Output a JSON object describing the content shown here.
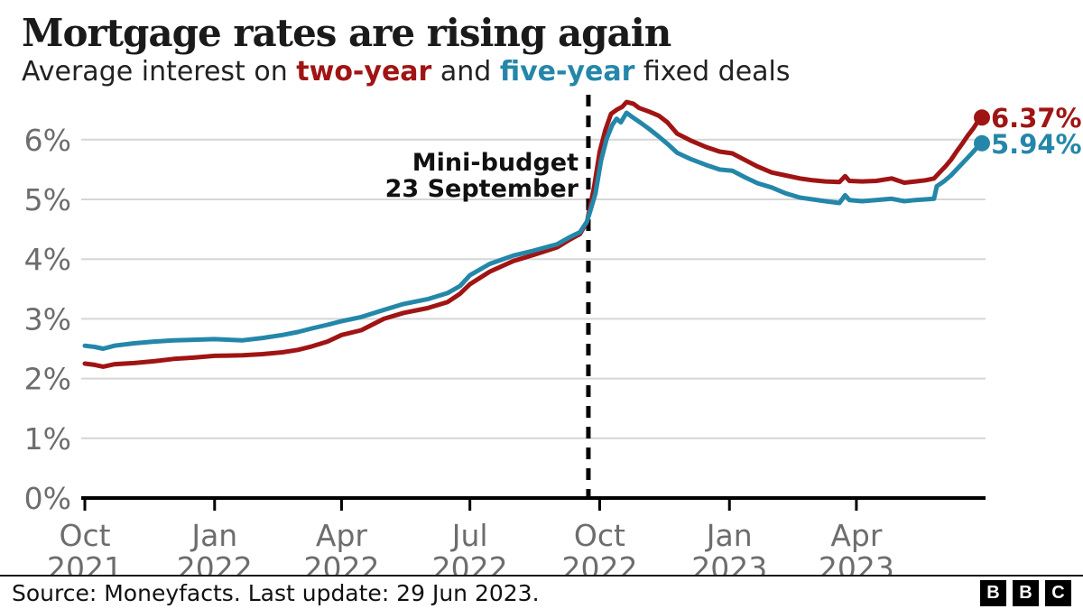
{
  "header": {
    "title": "Mortgage rates are rising again",
    "subtitle_parts": {
      "prefix": "Average interest on ",
      "series1": "two-year",
      "middle": " and ",
      "series2": "five-year",
      "suffix": " fixed deals"
    }
  },
  "colors": {
    "two_year": "#a01414",
    "five_year": "#2487a9",
    "grid": "#d6d6d6",
    "axis": "#000000",
    "tick_label": "#6d6d6d",
    "annotation": "#111111",
    "title": "#1a1a1a"
  },
  "annotation": {
    "line1": "Mini-budget",
    "line2": "23 September",
    "date": "2022-09-23"
  },
  "footer": {
    "source": "Source: Moneyfacts. Last update: 29 Jun 2023.",
    "logo_letters": [
      "B",
      "B",
      "C"
    ]
  },
  "chart_data": {
    "type": "line",
    "title": "Mortgage rates are rising again",
    "subtitle": "Average interest on two-year and five-year fixed deals",
    "x_start": "2021-10-01",
    "x_end": "2023-06-29",
    "ylim": [
      0,
      6.8
    ],
    "grid": true,
    "legend_position": "inline-subtitle",
    "y_ticks": [
      "0%",
      "1%",
      "2%",
      "3%",
      "4%",
      "5%",
      "6%"
    ],
    "x_ticks": [
      {
        "month": "Oct",
        "year": "2021",
        "date": "2021-10-01"
      },
      {
        "month": "Jan",
        "year": "2022",
        "date": "2022-01-01"
      },
      {
        "month": "Apr",
        "year": "2022",
        "date": "2022-04-01"
      },
      {
        "month": "Jul",
        "year": "2022",
        "date": "2022-07-01"
      },
      {
        "month": "Oct",
        "year": "2022",
        "date": "2022-10-01"
      },
      {
        "month": "Jan",
        "year": "2023",
        "date": "2023-01-01"
      },
      {
        "month": "Apr",
        "year": "2023",
        "date": "2023-04-01"
      }
    ],
    "event_line": {
      "date": "2022-09-23",
      "label": "Mini-budget 23 September"
    },
    "series": [
      {
        "name": "two-year",
        "color": "#a01414",
        "end_label": "6.37%",
        "end_value": 6.37,
        "points": [
          [
            "2021-10-01",
            2.25
          ],
          [
            "2021-10-08",
            2.23
          ],
          [
            "2021-10-14",
            2.2
          ],
          [
            "2021-10-22",
            2.24
          ],
          [
            "2021-11-05",
            2.26
          ],
          [
            "2021-11-19",
            2.29
          ],
          [
            "2021-12-03",
            2.33
          ],
          [
            "2021-12-17",
            2.35
          ],
          [
            "2022-01-01",
            2.38
          ],
          [
            "2022-01-21",
            2.39
          ],
          [
            "2022-02-04",
            2.41
          ],
          [
            "2022-02-18",
            2.44
          ],
          [
            "2022-03-01",
            2.48
          ],
          [
            "2022-03-11",
            2.54
          ],
          [
            "2022-03-22",
            2.62
          ],
          [
            "2022-04-01",
            2.73
          ],
          [
            "2022-04-15",
            2.81
          ],
          [
            "2022-05-01",
            3.0
          ],
          [
            "2022-05-15",
            3.1
          ],
          [
            "2022-06-01",
            3.18
          ],
          [
            "2022-06-15",
            3.28
          ],
          [
            "2022-06-24",
            3.42
          ],
          [
            "2022-07-01",
            3.58
          ],
          [
            "2022-07-15",
            3.79
          ],
          [
            "2022-08-01",
            3.97
          ],
          [
            "2022-08-15",
            4.07
          ],
          [
            "2022-09-01",
            4.2
          ],
          [
            "2022-09-10",
            4.33
          ],
          [
            "2022-09-17",
            4.42
          ],
          [
            "2022-09-22",
            4.62
          ],
          [
            "2022-09-23",
            4.74
          ],
          [
            "2022-09-27",
            5.2
          ],
          [
            "2022-10-01",
            5.8
          ],
          [
            "2022-10-05",
            6.16
          ],
          [
            "2022-10-09",
            6.43
          ],
          [
            "2022-10-13",
            6.5
          ],
          [
            "2022-10-17",
            6.55
          ],
          [
            "2022-10-20",
            6.63
          ],
          [
            "2022-10-25",
            6.6
          ],
          [
            "2022-10-29",
            6.53
          ],
          [
            "2022-11-05",
            6.47
          ],
          [
            "2022-11-12",
            6.4
          ],
          [
            "2022-11-18",
            6.29
          ],
          [
            "2022-11-25",
            6.1
          ],
          [
            "2022-12-05",
            5.98
          ],
          [
            "2022-12-15",
            5.88
          ],
          [
            "2022-12-25",
            5.8
          ],
          [
            "2023-01-03",
            5.77
          ],
          [
            "2023-01-12",
            5.66
          ],
          [
            "2023-01-21",
            5.55
          ],
          [
            "2023-01-31",
            5.45
          ],
          [
            "2023-02-10",
            5.4
          ],
          [
            "2023-02-20",
            5.35
          ],
          [
            "2023-03-01",
            5.32
          ],
          [
            "2023-03-10",
            5.3
          ],
          [
            "2023-03-20",
            5.29
          ],
          [
            "2023-03-24",
            5.39
          ],
          [
            "2023-03-27",
            5.31
          ],
          [
            "2023-04-05",
            5.3
          ],
          [
            "2023-04-15",
            5.31
          ],
          [
            "2023-04-26",
            5.35
          ],
          [
            "2023-05-05",
            5.28
          ],
          [
            "2023-05-13",
            5.3
          ],
          [
            "2023-05-20",
            5.32
          ],
          [
            "2023-05-26",
            5.35
          ],
          [
            "2023-05-30",
            5.45
          ],
          [
            "2023-06-03",
            5.55
          ],
          [
            "2023-06-07",
            5.66
          ],
          [
            "2023-06-11",
            5.8
          ],
          [
            "2023-06-15",
            5.93
          ],
          [
            "2023-06-19",
            6.07
          ],
          [
            "2023-06-23",
            6.19
          ],
          [
            "2023-06-26",
            6.3
          ],
          [
            "2023-06-29",
            6.37
          ]
        ]
      },
      {
        "name": "five-year",
        "color": "#2487a9",
        "end_label": "5.94%",
        "end_value": 5.94,
        "points": [
          [
            "2021-10-01",
            2.55
          ],
          [
            "2021-10-08",
            2.53
          ],
          [
            "2021-10-14",
            2.5
          ],
          [
            "2021-10-22",
            2.55
          ],
          [
            "2021-11-05",
            2.59
          ],
          [
            "2021-11-19",
            2.62
          ],
          [
            "2021-12-03",
            2.64
          ],
          [
            "2021-12-17",
            2.65
          ],
          [
            "2022-01-01",
            2.66
          ],
          [
            "2022-01-21",
            2.64
          ],
          [
            "2022-02-04",
            2.68
          ],
          [
            "2022-02-18",
            2.73
          ],
          [
            "2022-03-01",
            2.78
          ],
          [
            "2022-03-11",
            2.84
          ],
          [
            "2022-03-22",
            2.9
          ],
          [
            "2022-04-01",
            2.96
          ],
          [
            "2022-04-15",
            3.03
          ],
          [
            "2022-05-01",
            3.15
          ],
          [
            "2022-05-15",
            3.25
          ],
          [
            "2022-06-01",
            3.33
          ],
          [
            "2022-06-15",
            3.43
          ],
          [
            "2022-06-24",
            3.55
          ],
          [
            "2022-07-01",
            3.73
          ],
          [
            "2022-07-15",
            3.92
          ],
          [
            "2022-08-01",
            4.06
          ],
          [
            "2022-08-15",
            4.14
          ],
          [
            "2022-09-01",
            4.25
          ],
          [
            "2022-09-10",
            4.37
          ],
          [
            "2022-09-17",
            4.45
          ],
          [
            "2022-09-22",
            4.63
          ],
          [
            "2022-09-24",
            4.78
          ],
          [
            "2022-09-28",
            5.1
          ],
          [
            "2022-10-02",
            5.65
          ],
          [
            "2022-10-06",
            6.02
          ],
          [
            "2022-10-10",
            6.25
          ],
          [
            "2022-10-13",
            6.35
          ],
          [
            "2022-10-16",
            6.29
          ],
          [
            "2022-10-20",
            6.45
          ],
          [
            "2022-10-24",
            6.38
          ],
          [
            "2022-10-29",
            6.3
          ],
          [
            "2022-11-05",
            6.18
          ],
          [
            "2022-11-12",
            6.05
          ],
          [
            "2022-11-18",
            5.93
          ],
          [
            "2022-11-25",
            5.78
          ],
          [
            "2022-12-05",
            5.67
          ],
          [
            "2022-12-15",
            5.58
          ],
          [
            "2022-12-25",
            5.5
          ],
          [
            "2023-01-03",
            5.48
          ],
          [
            "2023-01-12",
            5.37
          ],
          [
            "2023-01-21",
            5.27
          ],
          [
            "2023-01-31",
            5.2
          ],
          [
            "2023-02-10",
            5.1
          ],
          [
            "2023-02-20",
            5.03
          ],
          [
            "2023-03-01",
            5.0
          ],
          [
            "2023-03-10",
            4.97
          ],
          [
            "2023-03-20",
            4.94
          ],
          [
            "2023-03-24",
            5.07
          ],
          [
            "2023-03-27",
            4.99
          ],
          [
            "2023-04-05",
            4.97
          ],
          [
            "2023-04-15",
            4.99
          ],
          [
            "2023-04-26",
            5.01
          ],
          [
            "2023-05-05",
            4.97
          ],
          [
            "2023-05-13",
            4.99
          ],
          [
            "2023-05-20",
            5.0
          ],
          [
            "2023-05-26",
            5.01
          ],
          [
            "2023-05-28",
            5.22
          ],
          [
            "2023-06-02",
            5.3
          ],
          [
            "2023-06-07",
            5.4
          ],
          [
            "2023-06-11",
            5.5
          ],
          [
            "2023-06-15",
            5.6
          ],
          [
            "2023-06-19",
            5.7
          ],
          [
            "2023-06-23",
            5.8
          ],
          [
            "2023-06-26",
            5.88
          ],
          [
            "2023-06-29",
            5.94
          ]
        ]
      }
    ]
  }
}
